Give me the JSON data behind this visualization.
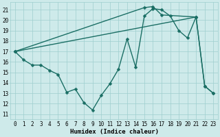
{
  "background_color": "#ceeaea",
  "grid_color": "#9ecece",
  "line_color": "#1a6e64",
  "markersize": 2.5,
  "linewidth": 1.0,
  "xlim": [
    -0.5,
    23.5
  ],
  "ylim": [
    10.5,
    21.7
  ],
  "xticks": [
    0,
    1,
    2,
    3,
    4,
    5,
    6,
    7,
    8,
    9,
    10,
    11,
    12,
    13,
    14,
    15,
    16,
    17,
    18,
    19,
    20,
    21,
    22,
    23
  ],
  "yticks": [
    11,
    12,
    13,
    14,
    15,
    16,
    17,
    18,
    19,
    20,
    21
  ],
  "xlabel": "Humidex (Indice chaleur)",
  "xlabel_fontsize": 6.5,
  "tick_fontsize": 5.5,
  "series1": [
    [
      0,
      17.0
    ],
    [
      1,
      16.2
    ],
    [
      2,
      15.7
    ],
    [
      3,
      15.7
    ],
    [
      4,
      15.2
    ],
    [
      5,
      14.8
    ],
    [
      6,
      13.1
    ],
    [
      7,
      13.4
    ],
    [
      8,
      12.1
    ],
    [
      9,
      11.4
    ],
    [
      10,
      12.8
    ],
    [
      11,
      13.9
    ],
    [
      12,
      15.3
    ],
    [
      13,
      18.2
    ],
    [
      14,
      15.5
    ],
    [
      15,
      20.4
    ],
    [
      16,
      21.1
    ],
    [
      17,
      21.0
    ],
    [
      18,
      20.4
    ],
    [
      19,
      19.0
    ],
    [
      20,
      18.3
    ],
    [
      21,
      20.3
    ],
    [
      22,
      13.7
    ],
    [
      23,
      13.0
    ]
  ],
  "series2": [
    [
      0,
      17.0
    ],
    [
      15,
      21.2
    ],
    [
      16,
      21.3
    ],
    [
      17,
      20.5
    ],
    [
      21,
      20.3
    ]
  ],
  "series3": [
    [
      0,
      17.0
    ],
    [
      21,
      20.3
    ],
    [
      22,
      13.7
    ],
    [
      23,
      13.0
    ]
  ]
}
